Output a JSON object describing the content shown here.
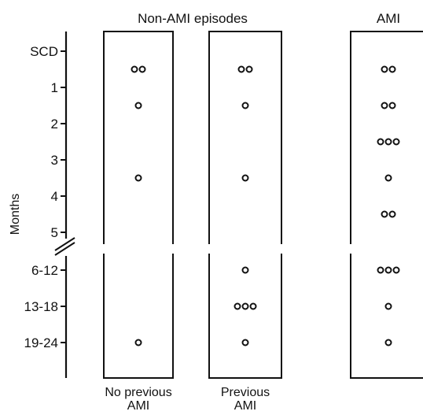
{
  "chart_data": {
    "type": "scatter",
    "ylabel": "Months",
    "y_categories": [
      "SCD",
      "1",
      "2",
      "3",
      "4",
      "5",
      "6-12",
      "13-18",
      "19-24"
    ],
    "group_titles": [
      {
        "label": "Non-AMI episodes",
        "spans": [
          "no_previous",
          "previous"
        ]
      },
      {
        "label": "AMI",
        "spans": [
          "ami"
        ]
      }
    ],
    "panels": [
      {
        "id": "no_previous",
        "label_lines": [
          "No previous",
          "AMI"
        ],
        "points": [
          {
            "y": 0.5,
            "count": 2
          },
          {
            "y": 1.5,
            "count": 1
          },
          {
            "y": 3.5,
            "count": 1
          },
          {
            "y": "19-24",
            "count": 1
          }
        ]
      },
      {
        "id": "previous",
        "label_lines": [
          "Previous",
          "AMI"
        ],
        "points": [
          {
            "y": 0.5,
            "count": 2
          },
          {
            "y": 1.5,
            "count": 1
          },
          {
            "y": 3.5,
            "count": 1
          },
          {
            "y": "6-12",
            "count": 1
          },
          {
            "y": "13-18",
            "count": 3
          },
          {
            "y": "19-24",
            "count": 1
          }
        ]
      },
      {
        "id": "ami",
        "label_lines": [],
        "points": [
          {
            "y": 0.5,
            "count": 2
          },
          {
            "y": 1.5,
            "count": 2
          },
          {
            "y": 2.5,
            "count": 3
          },
          {
            "y": 3.5,
            "count": 1
          },
          {
            "y": 4.5,
            "count": 2
          },
          {
            "y": "6-12",
            "count": 3
          },
          {
            "y": "13-18",
            "count": 1
          },
          {
            "y": "19-24",
            "count": 1
          }
        ]
      }
    ],
    "axis_break_between": [
      "5",
      "6-12"
    ],
    "grid": false,
    "legend": "none"
  }
}
